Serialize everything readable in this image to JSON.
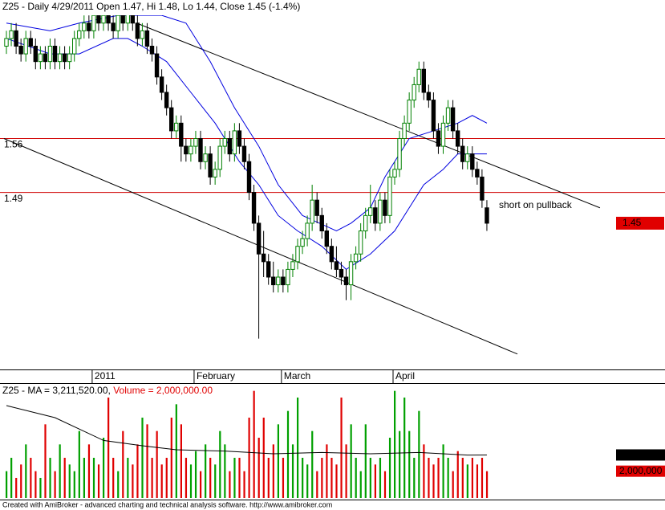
{
  "chart_data": {
    "type": "candlestick",
    "title": "Z25 - Daily 4/29/2011 Open 1.47, Hi 1.48, Lo 1.44, Close 1.45 (-1.4%)",
    "categories": [
      null,
      null,
      null,
      null,
      null,
      null,
      null,
      null,
      null,
      null,
      null,
      null,
      null,
      null,
      null,
      null,
      null,
      null,
      "2011",
      null,
      null,
      null,
      null,
      null,
      null,
      null,
      null,
      null,
      null,
      null,
      null,
      null,
      null,
      null,
      null,
      null,
      null,
      null,
      null,
      "February",
      null,
      null,
      null,
      null,
      null,
      null,
      null,
      null,
      null,
      null,
      null,
      null,
      null,
      null,
      null,
      null,
      null,
      "March",
      null,
      null,
      null,
      null,
      null,
      null,
      null,
      null,
      null,
      null,
      null,
      null,
      null,
      null,
      null,
      null,
      null,
      null,
      null,
      null,
      null,
      null,
      "April",
      null,
      null,
      null,
      null,
      null,
      null,
      null,
      null,
      null,
      null,
      null,
      null,
      null,
      null,
      null,
      null,
      null,
      null,
      null
    ],
    "open": [
      1.68,
      1.69,
      1.7,
      1.68,
      1.67,
      1.69,
      1.68,
      1.66,
      1.67,
      1.66,
      1.68,
      1.66,
      1.67,
      1.66,
      1.67,
      1.69,
      1.7,
      1.71,
      1.7,
      1.72,
      1.71,
      1.72,
      1.71,
      1.7,
      1.72,
      1.71,
      1.73,
      1.71,
      1.69,
      1.7,
      1.68,
      1.67,
      1.64,
      1.62,
      1.6,
      1.57,
      1.58,
      1.55,
      1.54,
      1.55,
      1.56,
      1.53,
      1.54,
      1.51,
      1.52,
      1.55,
      1.56,
      1.54,
      1.57,
      1.55,
      1.53,
      1.49,
      1.45,
      1.41,
      1.4,
      1.38,
      1.37,
      1.38,
      1.37,
      1.39,
      1.4,
      1.42,
      1.43,
      1.45,
      1.48,
      1.46,
      1.44,
      1.42,
      1.4,
      1.39,
      1.38,
      1.37,
      1.4,
      1.41,
      1.44,
      1.46,
      1.47,
      1.45,
      1.48,
      1.46,
      1.51,
      1.52,
      1.56,
      1.58,
      1.61,
      1.63,
      1.65,
      1.62,
      1.61,
      1.57,
      1.55,
      1.58,
      1.6,
      1.57,
      1.55,
      1.53,
      1.54,
      1.52,
      1.51,
      1.47
    ],
    "high": [
      1.7,
      1.71,
      1.71,
      1.69,
      1.7,
      1.7,
      1.69,
      1.68,
      1.68,
      1.69,
      1.69,
      1.68,
      1.68,
      1.68,
      1.7,
      1.71,
      1.72,
      1.72,
      1.73,
      1.73,
      1.73,
      1.73,
      1.72,
      1.73,
      1.73,
      1.74,
      1.73,
      1.72,
      1.71,
      1.71,
      1.69,
      1.68,
      1.65,
      1.63,
      1.61,
      1.59,
      1.59,
      1.56,
      1.56,
      1.57,
      1.57,
      1.55,
      1.55,
      1.53,
      1.56,
      1.57,
      1.57,
      1.58,
      1.58,
      1.56,
      1.54,
      1.5,
      1.46,
      1.44,
      1.41,
      1.4,
      1.39,
      1.39,
      1.4,
      1.41,
      1.43,
      1.44,
      1.46,
      1.5,
      1.49,
      1.47,
      1.45,
      1.43,
      1.42,
      1.4,
      1.39,
      1.41,
      1.42,
      1.45,
      1.47,
      1.5,
      1.48,
      1.49,
      1.49,
      1.52,
      1.53,
      1.57,
      1.59,
      1.62,
      1.64,
      1.66,
      1.66,
      1.63,
      1.62,
      1.58,
      1.59,
      1.61,
      1.61,
      1.58,
      1.56,
      1.55,
      1.55,
      1.53,
      1.52,
      1.48
    ],
    "low": [
      1.67,
      1.68,
      1.67,
      1.66,
      1.66,
      1.67,
      1.65,
      1.65,
      1.65,
      1.65,
      1.65,
      1.65,
      1.65,
      1.65,
      1.66,
      1.68,
      1.69,
      1.69,
      1.69,
      1.7,
      1.7,
      1.7,
      1.69,
      1.69,
      1.7,
      1.7,
      1.7,
      1.68,
      1.68,
      1.67,
      1.66,
      1.63,
      1.61,
      1.59,
      1.56,
      1.56,
      1.53,
      1.53,
      1.53,
      1.54,
      1.52,
      1.52,
      1.5,
      1.5,
      1.51,
      1.54,
      1.53,
      1.53,
      1.54,
      1.52,
      1.48,
      1.44,
      1.3,
      1.38,
      1.37,
      1.36,
      1.36,
      1.36,
      1.36,
      1.38,
      1.39,
      1.41,
      1.42,
      1.44,
      1.45,
      1.43,
      1.41,
      1.39,
      1.38,
      1.37,
      1.35,
      1.35,
      1.39,
      1.4,
      1.43,
      1.45,
      1.44,
      1.44,
      1.45,
      1.45,
      1.5,
      1.51,
      1.55,
      1.57,
      1.6,
      1.62,
      1.61,
      1.6,
      1.56,
      1.54,
      1.54,
      1.57,
      1.56,
      1.54,
      1.52,
      1.52,
      1.51,
      1.5,
      1.47,
      1.44
    ],
    "close": [
      1.69,
      1.7,
      1.68,
      1.67,
      1.69,
      1.68,
      1.66,
      1.67,
      1.66,
      1.68,
      1.66,
      1.67,
      1.66,
      1.67,
      1.69,
      1.7,
      1.71,
      1.7,
      1.72,
      1.71,
      1.72,
      1.71,
      1.7,
      1.72,
      1.71,
      1.73,
      1.71,
      1.69,
      1.7,
      1.68,
      1.67,
      1.64,
      1.62,
      1.6,
      1.57,
      1.58,
      1.55,
      1.54,
      1.55,
      1.56,
      1.53,
      1.54,
      1.51,
      1.52,
      1.55,
      1.56,
      1.54,
      1.57,
      1.55,
      1.53,
      1.49,
      1.45,
      1.41,
      1.4,
      1.38,
      1.37,
      1.38,
      1.37,
      1.39,
      1.4,
      1.42,
      1.43,
      1.45,
      1.48,
      1.46,
      1.44,
      1.42,
      1.4,
      1.39,
      1.38,
      1.37,
      1.4,
      1.41,
      1.44,
      1.46,
      1.47,
      1.45,
      1.48,
      1.46,
      1.51,
      1.52,
      1.56,
      1.58,
      1.61,
      1.63,
      1.65,
      1.62,
      1.61,
      1.57,
      1.55,
      1.58,
      1.6,
      1.57,
      1.55,
      1.53,
      1.54,
      1.52,
      1.51,
      1.48,
      1.45
    ],
    "up_color": "#008000",
    "down_color": "#000000",
    "ylim": [
      1.26,
      1.74
    ],
    "hlines": [
      1.56,
      1.49
    ],
    "hline_color": "#d00000",
    "bands": [
      {
        "color": "#0000e0",
        "x": [
          0,
          9,
          15,
          23,
          32,
          37,
          42,
          47,
          52,
          56,
          61,
          68,
          71,
          75,
          78,
          83,
          88,
          93,
          96,
          99
        ],
        "values": [
          1.71,
          1.7,
          1.71,
          1.72,
          1.72,
          1.71,
          1.66,
          1.6,
          1.55,
          1.5,
          1.46,
          1.44,
          1.45,
          1.47,
          1.51,
          1.56,
          1.57,
          1.58,
          1.59,
          1.58
        ]
      },
      {
        "color": "#0000e0",
        "x": [
          0,
          9,
          15,
          22,
          25,
          28,
          33,
          38,
          43,
          48,
          52,
          56,
          60,
          65,
          70,
          75,
          80,
          83,
          86,
          90,
          93,
          96,
          99
        ],
        "values": [
          1.69,
          1.67,
          1.67,
          1.69,
          1.69,
          1.68,
          1.66,
          1.62,
          1.58,
          1.53,
          1.5,
          1.46,
          1.44,
          1.42,
          1.39,
          1.41,
          1.44,
          1.47,
          1.5,
          1.52,
          1.54,
          1.54,
          1.54
        ]
      }
    ],
    "trendlines": [
      {
        "x": [
          26.8,
          122.3
        ],
        "y": [
          1.71,
          1.47
        ]
      },
      {
        "x": [
          -0.5,
          105.3
        ],
        "y": [
          1.56,
          1.28
        ]
      }
    ],
    "annotation": "short on pullback",
    "volume_title_ma": "Z25 - MA = 3,211,520.00,",
    "volume_title_vol": "Volume = 2,000,000.00",
    "volume_up_color": "#00a000",
    "volume_down_color": "#e00000",
    "volume": [
      2000000,
      3000000,
      1500000,
      2500000,
      4000000,
      3000000,
      2000000,
      1500000,
      5500000,
      3000000,
      2000000,
      4000000,
      3000000,
      2500000,
      2000000,
      5000000,
      3000000,
      4000000,
      3000000,
      2500000,
      4500000,
      7500000,
      3000000,
      2000000,
      5000000,
      3000000,
      2500000,
      4000000,
      6000000,
      5500000,
      3000000,
      5000000,
      2500000,
      3000000,
      6000000,
      7000000,
      5500000,
      3000000,
      2500000,
      3500000,
      2000000,
      4000000,
      3000000,
      2500000,
      5000000,
      4000000,
      2000000,
      3000000,
      3000000,
      2000000,
      6000000,
      8000000,
      4500000,
      6000000,
      3000000,
      4000000,
      5500000,
      3000000,
      6500000,
      4000000,
      7500000,
      3000000,
      2500000,
      5000000,
      2000000,
      3000000,
      4000000,
      3000000,
      2500000,
      7500000,
      4000000,
      5500000,
      3000000,
      2000000,
      5500000,
      3000000,
      2500000,
      3000000,
      2000000,
      4500000,
      8000000,
      5000000,
      7500000,
      5000000,
      3000000,
      6500000,
      4000000,
      3000000,
      2500000,
      3000000,
      4000000,
      3000000,
      2000000,
      3500000,
      3000000,
      2500000,
      3000000,
      2500000,
      3000000,
      2000000
    ],
    "volume_value_label": "2,000,000",
    "volume_ylim": [
      0,
      8400000
    ],
    "volume_ma": {
      "x": [
        0,
        10,
        20,
        28,
        35,
        45,
        55,
        65,
        75,
        85,
        95,
        99
      ],
      "values": [
        6900000,
        6000000,
        4300000,
        3900000,
        3600000,
        3500000,
        3300000,
        3400000,
        3300000,
        3400000,
        3200000,
        3211520
      ],
      "value_label": "3,211,520"
    },
    "footer": "Created with AmiBroker - advanced charting and technical analysis software. http://www.amibroker.com"
  }
}
